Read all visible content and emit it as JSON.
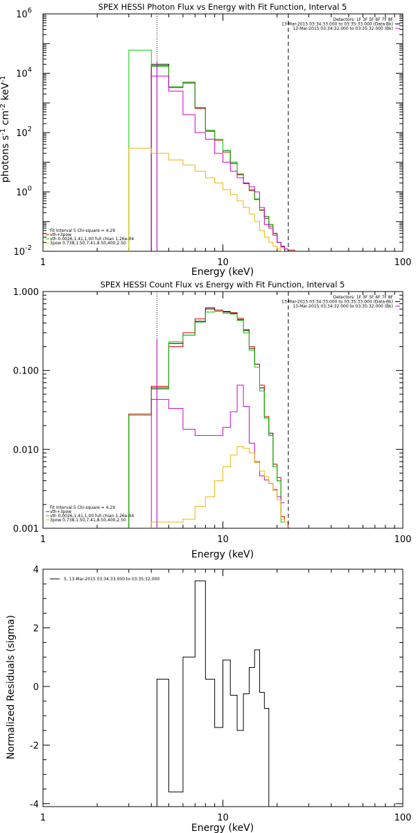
{
  "chart_data": [
    {
      "type": "line",
      "title": "SPEX HESSI Photon Flux vs Energy with Fit Function, Interval 5",
      "xlabel": "Energy (keV)",
      "ylabel": "photons s-1 cm-2 keV-1",
      "xscale": "log",
      "yscale": "log",
      "xlim": [
        1,
        100
      ],
      "ylim": [
        0.01,
        1000000
      ],
      "x_ticks": [
        {
          "v": 1,
          "label": "1"
        },
        {
          "v": 10,
          "label": "10"
        },
        {
          "v": 100,
          "label": "100"
        }
      ],
      "y_ticks": [
        {
          "v": 0.01,
          "label": "10",
          "sup": "-2"
        },
        {
          "v": 1,
          "label": "10",
          "sup": "0"
        },
        {
          "v": 100,
          "label": "10",
          "sup": "2"
        },
        {
          "v": 10000,
          "label": "10",
          "sup": "4"
        },
        {
          "v": 1000000,
          "label": "10",
          "sup": "6"
        }
      ],
      "edges": [
        3,
        4,
        5,
        6,
        7,
        8,
        9,
        10,
        11,
        12,
        13,
        14,
        15,
        16,
        17,
        18,
        19,
        20,
        21,
        22,
        23,
        25
      ],
      "series": [
        {
          "name": "Data-Bk",
          "color": "#000000",
          "first_bin": 1,
          "values": [
            20000,
            3500,
            5000,
            700,
            120,
            60,
            25,
            10,
            4,
            2,
            1.2,
            0.6,
            0.25,
            0.15,
            0.08,
            0.04,
            0.02,
            0.015,
            0.01,
            null
          ]
        },
        {
          "name": "vth+3pow",
          "color": "#cc0000",
          "first_bin": 1,
          "values": [
            18000,
            3300,
            4600,
            650,
            110,
            55,
            22,
            9,
            3.8,
            1.9,
            1.1,
            0.55,
            0.24,
            0.13,
            0.07,
            0.035,
            0.02,
            0.014,
            0.012,
            0.011
          ]
        },
        {
          "name": "vth",
          "color": "#00cc00",
          "first_bin": 0,
          "values": [
            60000,
            17000,
            3500,
            5000,
            700,
            120,
            60,
            25,
            10,
            4,
            2,
            1.2,
            0.6,
            0.25,
            0.15,
            0.08,
            0.04,
            0.02,
            0.015,
            0.012
          ]
        },
        {
          "name": "Bk",
          "color": "#cc00cc",
          "first_bin": 1,
          "values": [
            8000,
            2500,
            400,
            100,
            60,
            20,
            10,
            5,
            3,
            2,
            1.5,
            1,
            0.3,
            0.08,
            0.06,
            0.04,
            0.02,
            0.015,
            0.012,
            null
          ]
        },
        {
          "name": "3pow",
          "color": "#e6b800",
          "first_bin": 0,
          "values": [
            30,
            20,
            12,
            8,
            5,
            3,
            2,
            1.2,
            0.8,
            0.5,
            0.3,
            0.18,
            0.1,
            0.05,
            0.03,
            0.02,
            0.015,
            0.012,
            0.01,
            null
          ]
        }
      ],
      "vlines": [
        {
          "x": 4.3,
          "style": "dotted",
          "color": "#000000"
        },
        {
          "x": 23.1,
          "style": "dashed",
          "color": "#000000"
        },
        {
          "x": 4.3,
          "style": "solid",
          "color": "#cc00cc"
        }
      ],
      "legend_top": {
        "lines": [
          "Detectors: 1F 3F 5F 6F 7F 8F",
          "13-Mar-2015 03:34:33.000 to 03:35:33.000 (Data-Bk)",
          "13-Mar-2015 03:34:32.000 to 03:35:32.000 (Bk)"
        ],
        "line_colors": [
          null,
          "#000000",
          "#cc00cc"
        ]
      },
      "legend_bottom": {
        "lines": [
          "Fit Interval 5   Chi-square = 4.29",
          "vth+3pow",
          "vth 0.0026,1.41,1.00  full chian 1.26e-04",
          "3pow 0.738,1.50,7.41,8.50,400,2.50"
        ],
        "line_colors": [
          null,
          "#cc0000",
          "#00cc00",
          "#e6b800"
        ]
      }
    },
    {
      "type": "line",
      "title": "SPEX HESSI Count Flux vs Energy with Fit Function, Interval 5",
      "xlabel": "Energy (keV)",
      "ylabel": "",
      "xscale": "log",
      "yscale": "log",
      "xlim": [
        1,
        100
      ],
      "ylim": [
        0.001,
        1.0
      ],
      "x_ticks": [
        {
          "v": 1,
          "label": "1"
        },
        {
          "v": 10,
          "label": "10"
        },
        {
          "v": 100,
          "label": "100"
        }
      ],
      "y_ticks": [
        {
          "v": 0.001,
          "label": "0.001"
        },
        {
          "v": 0.01,
          "label": "0.010"
        },
        {
          "v": 0.1,
          "label": "0.100"
        },
        {
          "v": 1.0,
          "label": "1.000"
        }
      ],
      "edges": [
        3,
        4,
        5,
        6,
        7,
        8,
        9,
        10,
        11,
        12,
        13,
        14,
        15,
        16,
        17,
        18,
        19,
        20,
        21,
        22,
        23,
        25
      ],
      "series": [
        {
          "name": "Data-Bk",
          "color": "#000000",
          "first_bin": 0,
          "values": [
            0.028,
            0.06,
            0.22,
            0.28,
            0.42,
            0.62,
            0.58,
            0.55,
            0.53,
            0.44,
            0.32,
            0.19,
            0.12,
            0.06,
            0.025,
            0.016,
            0.006,
            0.004,
            0.0013,
            null
          ]
        },
        {
          "name": "vth+3pow",
          "color": "#cc0000",
          "first_bin": 0,
          "values": [
            0.028,
            0.063,
            0.2,
            0.3,
            0.45,
            0.6,
            0.58,
            0.56,
            0.54,
            0.46,
            0.33,
            0.2,
            0.12,
            0.065,
            0.026,
            0.015,
            0.0065,
            0.0044,
            0.0014,
            0.0012
          ]
        },
        {
          "name": "vth",
          "color": "#00cc00",
          "first_bin": 0,
          "values": [
            0.027,
            0.058,
            0.23,
            0.28,
            0.41,
            0.55,
            0.56,
            0.53,
            0.52,
            0.43,
            0.3,
            0.18,
            0.11,
            0.055,
            0.025,
            0.015,
            0.006,
            0.004,
            0.0012,
            null
          ]
        },
        {
          "name": "Bk",
          "color": "#cc00cc",
          "first_bin": 1,
          "values": [
            0.043,
            0.033,
            0.018,
            0.015,
            0.015,
            0.015,
            0.019,
            0.03,
            0.065,
            0.035,
            0.012,
            0.007,
            0.0046,
            0.0041,
            0.0037,
            0.0031,
            0.0025,
            0.0021,
            null,
            null
          ]
        },
        {
          "name": "3pow",
          "color": "#e6b800",
          "first_bin": 1,
          "values": [
            0.0012,
            0.0012,
            0.0013,
            0.0019,
            0.0025,
            0.004,
            0.006,
            0.0085,
            0.0108,
            0.0103,
            0.009,
            0.0068,
            0.0053,
            0.0045,
            0.0037,
            0.003,
            0.0023,
            0.0013,
            0.0012,
            null
          ]
        }
      ],
      "vlines": [
        {
          "x": 4.3,
          "style": "dotted",
          "color": "#000000"
        },
        {
          "x": 23.1,
          "style": "dashed",
          "color": "#000000"
        },
        {
          "x": 4.3,
          "style": "solid",
          "color": "#cc00cc"
        }
      ],
      "legend_top": {
        "lines": [
          "Detectors: 1F 3F 5F 6F 7F 8F",
          "13-Mar-2015 03:34:33.000 to 03:35:33.000 (Data-Bk)",
          "13-Mar-2015 03:34:32.000 to 03:35:32.000 (Bk)"
        ],
        "line_colors": [
          null,
          "#000000",
          "#cc00cc"
        ]
      },
      "legend_bottom": {
        "lines": [
          "Fit Interval 5   Chi-square = 4.29",
          "vth+3pow",
          "vth 0.0026,1.41,1.00  full chian 1.26e-04",
          "3pow 0.738,1.50,7.41,8.50,400,2.50"
        ],
        "line_colors": [
          null,
          "#cc0000",
          "#00cc00",
          "#e6b800"
        ]
      }
    },
    {
      "type": "line",
      "title": "",
      "xlabel": "Energy (keV)",
      "ylabel": "Normalized Residuals (sigma)",
      "xscale": "log",
      "yscale": "linear",
      "xlim": [
        1,
        100
      ],
      "ylim": [
        -4.1,
        4
      ],
      "x_ticks": [
        {
          "v": 1,
          "label": "1"
        },
        {
          "v": 10,
          "label": "10"
        },
        {
          "v": 100,
          "label": "100"
        }
      ],
      "y_ticks": [
        {
          "v": -4,
          "label": "-4"
        },
        {
          "v": -2,
          "label": "-2"
        },
        {
          "v": 0,
          "label": "0"
        },
        {
          "v": 2,
          "label": "2"
        },
        {
          "v": 4,
          "label": "4"
        }
      ],
      "edges": [
        4.3,
        5.0,
        6.0,
        7.0,
        8.0,
        9.0,
        10.0,
        11.0,
        12.0,
        13.0,
        14.0,
        15.0,
        16.0,
        17.0,
        18.0,
        19.0,
        20.0,
        21.0,
        23.1
      ],
      "series": [
        {
          "name": "5, 13-Mar-2015 03:34:33.000 to 03:35:32.000",
          "color": "#000000",
          "first_bin": 0,
          "values": [
            0.25,
            -3.6,
            1.0,
            3.6,
            0.25,
            -1.4,
            0.9,
            -0.3,
            -1.5,
            -0.25,
            0.65,
            1.25,
            -0.2,
            -0.75
          ],
          "drop_to_bottom": true
        }
      ],
      "vlines": [],
      "legend_top": {
        "lines": [
          "5, 13-Mar-2015 03:34:33.000 to 03:35:32.000"
        ],
        "line_colors": [
          "#000000"
        ]
      },
      "legend_bottom": {
        "lines": [],
        "line_colors": []
      }
    }
  ]
}
